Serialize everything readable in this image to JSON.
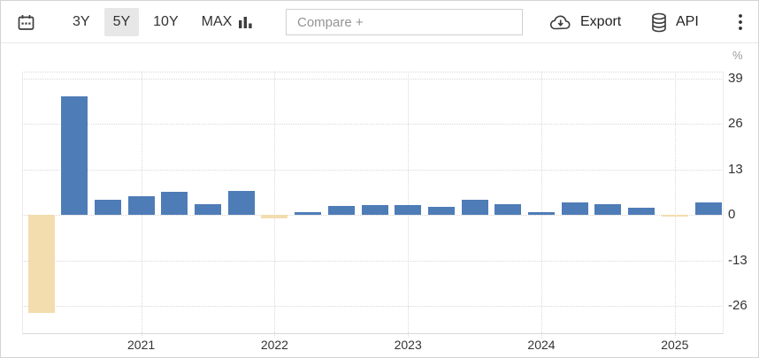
{
  "toolbar": {
    "range_buttons": [
      {
        "label": "3Y",
        "selected": false
      },
      {
        "label": "5Y",
        "selected": true
      },
      {
        "label": "10Y",
        "selected": false
      },
      {
        "label": "MAX",
        "selected": false
      }
    ],
    "compare_placeholder": "Compare +",
    "export_label": "Export",
    "api_label": "API"
  },
  "chart_data": {
    "type": "bar",
    "unit_label": "%",
    "categories": [
      "2020-Q2",
      "2020-Q3",
      "2020-Q4",
      "2021-Q1",
      "2021-Q2",
      "2021-Q3",
      "2021-Q4",
      "2022-Q1",
      "2022-Q2",
      "2022-Q3",
      "2022-Q4",
      "2023-Q1",
      "2023-Q2",
      "2023-Q3",
      "2023-Q4",
      "2024-Q1",
      "2024-Q2",
      "2024-Q3",
      "2024-Q4",
      "2025-Q1",
      "2025-Q2"
    ],
    "values": [
      -28,
      34,
      4.3,
      5.5,
      6.6,
      3.2,
      6.8,
      -0.9,
      0.8,
      2.6,
      2.9,
      2.8,
      2.4,
      4.5,
      3.2,
      0.8,
      3.5,
      3.2,
      2.0,
      -0.5,
      3.6
    ],
    "y_ticks": [
      39,
      26,
      13,
      0,
      -13,
      -26
    ],
    "x_tick_labels": [
      "2021",
      "2022",
      "2023",
      "2024",
      "2025"
    ],
    "ylim": [
      -33.5,
      41
    ],
    "grid": "dotted",
    "legend": "none",
    "positive_color": "#4e7cb7",
    "negative_color": "#f3ddae",
    "axis_text_color": "#333333",
    "grid_color": "#d9d9d9"
  }
}
